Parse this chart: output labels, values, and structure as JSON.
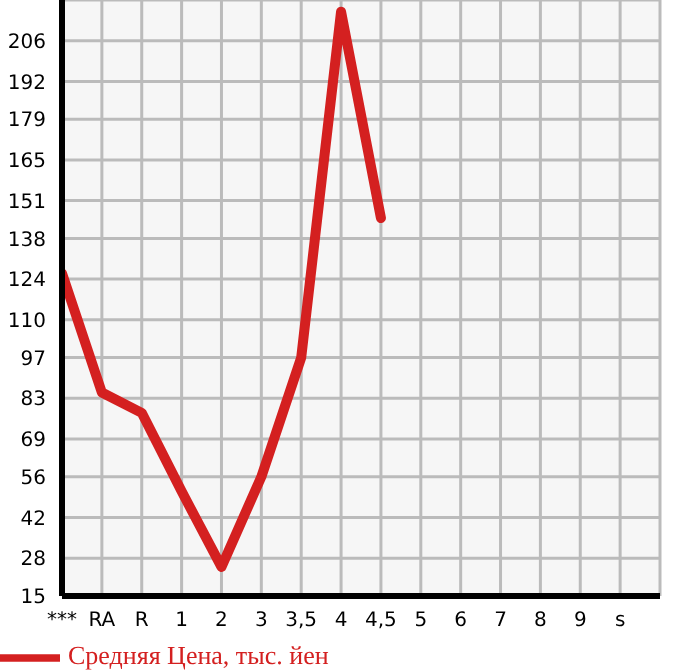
{
  "chart_data": {
    "type": "line",
    "categories": [
      "***",
      "RA",
      "R",
      "1",
      "2",
      "3",
      "3,5",
      "4",
      "4,5",
      "5",
      "6",
      "7",
      "8",
      "9",
      "s"
    ],
    "series": [
      {
        "name": "Средняя Цена, тыс. йен",
        "color": "#d42020",
        "values": [
          126,
          85,
          78,
          51,
          25,
          56,
          97,
          216,
          145,
          null,
          null,
          null,
          null,
          null,
          null
        ]
      }
    ],
    "ylim": [
      15,
      220
    ],
    "yticks": [
      15,
      28,
      42,
      56,
      69,
      83,
      97,
      110,
      124,
      138,
      151,
      165,
      179,
      192,
      206
    ],
    "grid": true,
    "legend": "bottom",
    "marker": "none",
    "line_style": "solid"
  }
}
